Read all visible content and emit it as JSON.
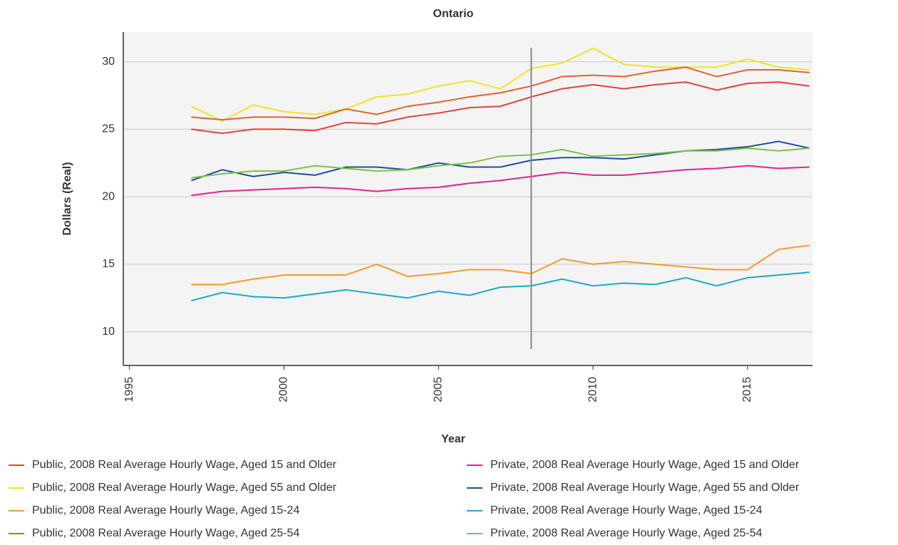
{
  "chart_data": {
    "type": "line",
    "title": "Ontario",
    "x_label": "Year",
    "y_label": "Dollars (Real)",
    "x": [
      1997,
      1998,
      1999,
      2000,
      2001,
      2002,
      2003,
      2004,
      2005,
      2006,
      2007,
      2008,
      2009,
      2010,
      2011,
      2012,
      2013,
      2014,
      2015,
      2016,
      2017
    ],
    "series": [
      {
        "name": "Public, 2008 Real Average Hourly Wage, Aged 15 and Older",
        "color": "#e8403a",
        "values": [
          25.0,
          24.7,
          25.0,
          25.0,
          24.9,
          25.5,
          25.4,
          25.9,
          26.2,
          26.6,
          26.7,
          27.4,
          28.0,
          28.3,
          28.0,
          28.3,
          28.5,
          27.9,
          28.4,
          28.5,
          28.2
        ]
      },
      {
        "name": "Public, 2008 Real Average Hourly Wage, Aged 55 and Older",
        "color": "#ede524",
        "values": [
          26.7,
          25.6,
          26.8,
          26.3,
          26.1,
          26.5,
          27.4,
          27.6,
          28.2,
          28.6,
          28.0,
          29.5,
          29.9,
          31.0,
          29.8,
          29.6,
          29.6,
          29.6,
          30.2,
          29.6,
          29.4
        ]
      },
      {
        "name": "Public, 2008 Real Average Hourly Wage, Aged 15-24",
        "color": "#f39a2c",
        "values": [
          13.5,
          13.5,
          13.9,
          14.2,
          14.2,
          14.2,
          15.0,
          14.1,
          14.3,
          14.6,
          14.6,
          14.3,
          15.4,
          15.0,
          15.2,
          15.0,
          14.8,
          14.6,
          14.6,
          16.1,
          16.4
        ]
      },
      {
        "name": "Public, 2008 Real Average Hourly Wage, Aged 25-54",
        "color": "#e0622c",
        "values": [
          25.9,
          25.7,
          25.9,
          25.9,
          25.8,
          26.5,
          26.1,
          26.7,
          27.0,
          27.4,
          27.7,
          28.2,
          28.9,
          29.0,
          28.9,
          29.3,
          29.6,
          28.9,
          29.4,
          29.4,
          29.2
        ]
      },
      {
        "name": "Private, 2008 Real Average Hourly Wage, Aged 15 and Older",
        "color": "#e0248c",
        "values": [
          20.1,
          20.4,
          20.5,
          20.6,
          20.7,
          20.6,
          20.4,
          20.6,
          20.7,
          21.0,
          21.2,
          21.5,
          21.8,
          21.6,
          21.6,
          21.8,
          22.0,
          22.1,
          22.3,
          22.1,
          22.2
        ]
      },
      {
        "name": "Private, 2008 Real Average Hourly Wage, Aged 55 and Older",
        "color": "#1b4f9c",
        "values": [
          21.2,
          22.0,
          21.5,
          21.8,
          21.6,
          22.2,
          22.2,
          22.0,
          22.5,
          22.2,
          22.2,
          22.7,
          22.9,
          22.9,
          22.8,
          23.1,
          23.4,
          23.5,
          23.7,
          24.1,
          23.6
        ]
      },
      {
        "name": "Private, 2008 Real Average Hourly Wage, Aged 15-24",
        "color": "#1ba9cc",
        "values": [
          12.3,
          12.9,
          12.6,
          12.5,
          12.8,
          13.1,
          12.8,
          12.5,
          13.0,
          12.7,
          13.3,
          13.4,
          13.9,
          13.4,
          13.6,
          13.5,
          14.0,
          13.4,
          14.0,
          14.2,
          14.4
        ]
      },
      {
        "name": "Private, 2008 Real Average Hourly Wage, Aged 25-54",
        "color": "#7dc243",
        "values": [
          21.4,
          21.7,
          21.9,
          21.9,
          22.3,
          22.1,
          21.9,
          22.0,
          22.3,
          22.5,
          23.0,
          23.1,
          23.5,
          23.0,
          23.1,
          23.2,
          23.4,
          23.4,
          23.6,
          23.4,
          23.6
        ]
      }
    ],
    "xlim": [
      1994.8,
      2017.1
    ],
    "ylim": [
      7.5,
      32.2
    ],
    "xticks": [
      1995,
      2000,
      2005,
      2010,
      2015
    ],
    "yticks": [
      10,
      15,
      20,
      25,
      30
    ],
    "grid": true,
    "reference_x": 2008
  }
}
